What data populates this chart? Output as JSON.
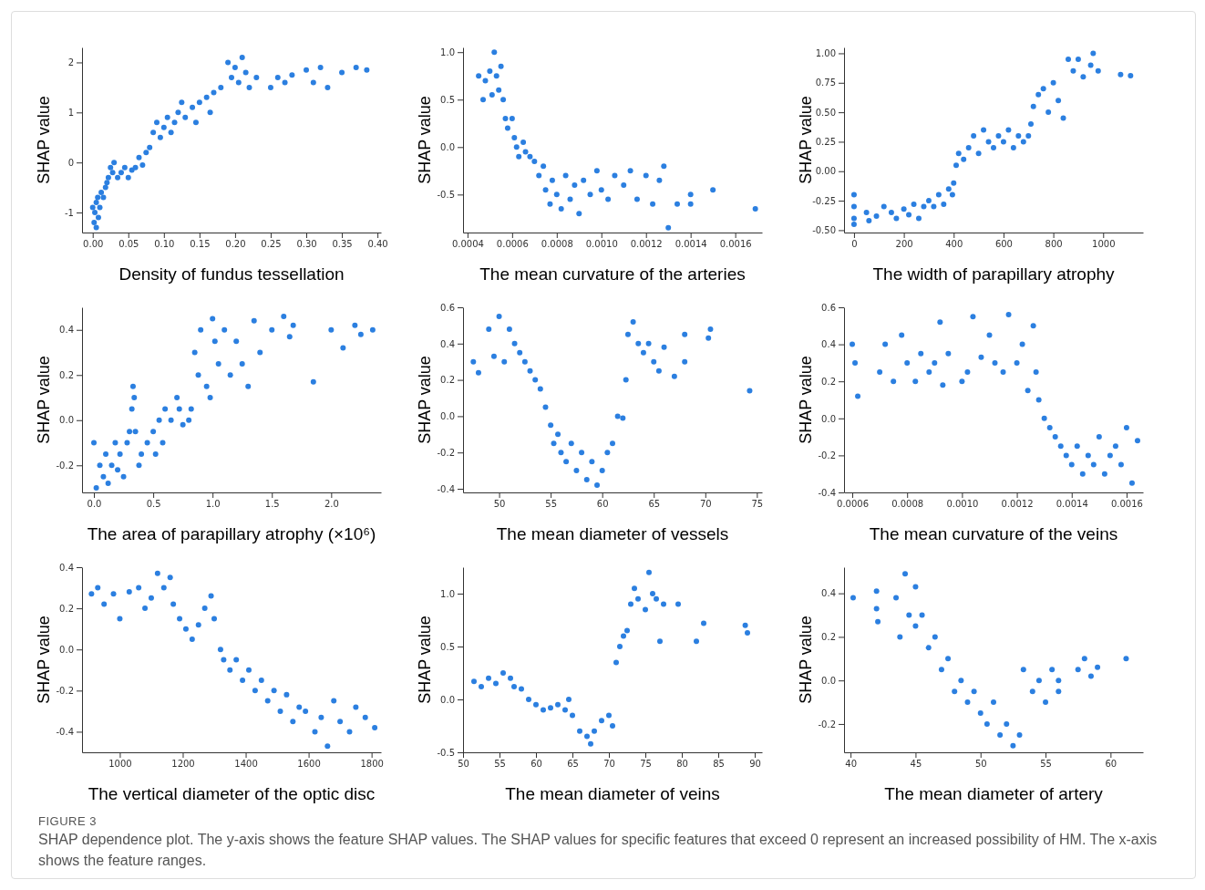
{
  "chart_data": [
    {
      "type": "scatter",
      "xlabel": "Density of fundus tessellation",
      "ylabel": "SHAP value",
      "color": "#2b7fe0",
      "marker": "circle",
      "xlim": [
        -0.015,
        0.405
      ],
      "ylim": [
        -1.4,
        2.3
      ],
      "xticks": [
        {
          "value": 0,
          "label": "0.00"
        },
        0.05,
        {
          "value": 0.1,
          "label": "0.10"
        },
        0.15,
        {
          "value": 0.2,
          "label": "0.20"
        },
        0.25,
        {
          "value": 0.3,
          "label": "0.30"
        },
        0.35,
        {
          "value": 0.4,
          "label": "0.40"
        }
      ],
      "yticks": [
        -1,
        0,
        1,
        2
      ],
      "x": [
        0,
        0.002,
        0.003,
        0.005,
        0.005,
        0.007,
        0.008,
        0.01,
        0.012,
        0.015,
        0.018,
        0.02,
        0.022,
        0.025,
        0.028,
        0.03,
        0.035,
        0.04,
        0.045,
        0.05,
        0.055,
        0.06,
        0.065,
        0.07,
        0.075,
        0.08,
        0.085,
        0.09,
        0.095,
        0.1,
        0.105,
        0.11,
        0.115,
        0.12,
        0.125,
        0.13,
        0.14,
        0.145,
        0.15,
        0.16,
        0.165,
        0.17,
        0.18,
        0.19,
        0.195,
        0.2,
        0.205,
        0.21,
        0.215,
        0.22,
        0.23,
        0.25,
        0.26,
        0.27,
        0.28,
        0.3,
        0.31,
        0.32,
        0.33,
        0.35,
        0.37,
        0.385
      ],
      "values": [
        -0.9,
        -1.2,
        -1,
        -0.8,
        -1.3,
        -0.7,
        -1.1,
        -0.9,
        -0.6,
        -0.7,
        -0.5,
        -0.4,
        -0.3,
        -0.1,
        -0.2,
        0,
        -0.3,
        -0.2,
        -0.1,
        -0.3,
        -0.15,
        -0.1,
        0.1,
        -0.05,
        0.2,
        0.3,
        0.6,
        0.8,
        0.5,
        0.7,
        0.9,
        0.6,
        0.8,
        1,
        1.2,
        0.9,
        1.1,
        0.8,
        1.2,
        1.3,
        1,
        1.4,
        1.5,
        2,
        1.7,
        1.9,
        1.6,
        2.1,
        1.8,
        1.5,
        1.7,
        1.5,
        1.7,
        1.6,
        1.75,
        1.85,
        1.6,
        1.9,
        1.5,
        1.8,
        1.9,
        1.85
      ]
    },
    {
      "type": "scatter",
      "xlabel": "The mean curvature of the arteries",
      "ylabel": "SHAP value",
      "color": "#2b7fe0",
      "marker": "circle",
      "xlim": [
        0.00038,
        0.00172
      ],
      "ylim": [
        -0.9,
        1.05
      ],
      "xticks": [
        0.0004,
        0.0006,
        0.0008,
        {
          "value": 0.001,
          "label": "0.0010"
        },
        0.0012,
        0.0014,
        0.0016
      ],
      "yticks": [
        {
          "value": -0.5,
          "label": "-0.5"
        },
        {
          "value": 0,
          "label": "0.0"
        },
        0.5,
        {
          "value": 1,
          "label": "1.0"
        }
      ],
      "x": [
        0.00045,
        0.00047,
        0.00048,
        0.0005,
        0.00051,
        0.00052,
        0.00053,
        0.00054,
        0.00055,
        0.00056,
        0.00057,
        0.00058,
        0.0006,
        0.00061,
        0.00062,
        0.00063,
        0.00065,
        0.00066,
        0.00068,
        0.0007,
        0.00072,
        0.00074,
        0.00075,
        0.00077,
        0.00078,
        0.0008,
        0.00082,
        0.00084,
        0.00086,
        0.00088,
        0.0009,
        0.00092,
        0.00095,
        0.00098,
        0.001,
        0.00103,
        0.00106,
        0.0011,
        0.00113,
        0.00116,
        0.0012,
        0.00123,
        0.00126,
        0.00128,
        0.0013,
        0.00134,
        0.0014,
        0.0014,
        0.0015,
        0.00169
      ],
      "values": [
        0.75,
        0.5,
        0.7,
        0.8,
        0.55,
        1,
        0.75,
        0.6,
        0.85,
        0.5,
        0.3,
        0.2,
        0.3,
        0.1,
        0,
        -0.1,
        0.05,
        -0.05,
        -0.1,
        -0.15,
        -0.3,
        -0.2,
        -0.45,
        -0.6,
        -0.35,
        -0.5,
        -0.65,
        -0.3,
        -0.55,
        -0.4,
        -0.7,
        -0.35,
        -0.5,
        -0.25,
        -0.45,
        -0.55,
        -0.3,
        -0.4,
        -0.25,
        -0.55,
        -0.3,
        -0.6,
        -0.35,
        -0.2,
        -0.85,
        -0.6,
        -0.5,
        -0.6,
        -0.45,
        -0.65
      ]
    },
    {
      "type": "scatter",
      "xlabel": "The width of parapillary atrophy",
      "ylabel": "SHAP value",
      "color": "#2b7fe0",
      "marker": "circle",
      "xlim": [
        -40,
        1160
      ],
      "ylim": [
        -0.52,
        1.05
      ],
      "xticks": [
        0,
        200,
        400,
        600,
        800,
        1000
      ],
      "yticks": [
        {
          "value": -0.5,
          "label": "-0.50"
        },
        -0.25,
        {
          "value": 0,
          "label": "0.00"
        },
        0.25,
        {
          "value": 0.5,
          "label": "0.50"
        },
        0.75,
        {
          "value": 1,
          "label": "1.00"
        }
      ],
      "x": [
        0,
        0,
        0,
        0,
        50,
        60,
        90,
        120,
        150,
        170,
        200,
        220,
        240,
        260,
        280,
        300,
        320,
        340,
        360,
        380,
        395,
        400,
        410,
        420,
        440,
        460,
        480,
        500,
        520,
        540,
        560,
        580,
        600,
        620,
        640,
        660,
        680,
        700,
        710,
        720,
        740,
        760,
        780,
        800,
        820,
        840,
        860,
        880,
        900,
        920,
        950,
        960,
        980,
        1070,
        1110
      ],
      "values": [
        -0.2,
        -0.3,
        -0.45,
        -0.4,
        -0.35,
        -0.42,
        -0.38,
        -0.3,
        -0.35,
        -0.4,
        -0.32,
        -0.37,
        -0.28,
        -0.4,
        -0.3,
        -0.25,
        -0.3,
        -0.2,
        -0.28,
        -0.15,
        -0.2,
        -0.1,
        0.05,
        0.15,
        0.1,
        0.2,
        0.3,
        0.15,
        0.35,
        0.25,
        0.2,
        0.3,
        0.25,
        0.35,
        0.2,
        0.3,
        0.25,
        0.3,
        0.4,
        0.55,
        0.65,
        0.7,
        0.5,
        0.75,
        0.6,
        0.45,
        0.95,
        0.85,
        0.95,
        0.8,
        0.9,
        1,
        0.85,
        0.82,
        0.81
      ]
    },
    {
      "type": "scatter",
      "xlabel": "The area of parapillary atrophy (×10⁶)",
      "ylabel": "SHAP value",
      "color": "#2b7fe0",
      "marker": "circle",
      "xlim": [
        -0.1,
        2.42
      ],
      "ylim": [
        -0.32,
        0.5
      ],
      "xticks": [
        {
          "value": 0,
          "label": "0.0"
        },
        0.5,
        {
          "value": 1,
          "label": "1.0"
        },
        1.5,
        {
          "value": 2,
          "label": "2.0"
        }
      ],
      "yticks": [
        -0.2,
        {
          "value": 0,
          "label": "0.0"
        },
        0.2,
        0.4
      ],
      "x": [
        0,
        0.02,
        0.05,
        0.08,
        0.1,
        0.12,
        0.15,
        0.18,
        0.2,
        0.22,
        0.25,
        0.28,
        0.3,
        0.32,
        0.33,
        0.34,
        0.35,
        0.38,
        0.4,
        0.45,
        0.5,
        0.52,
        0.55,
        0.58,
        0.6,
        0.65,
        0.7,
        0.72,
        0.75,
        0.8,
        0.82,
        0.85,
        0.88,
        0.9,
        0.95,
        0.98,
        1,
        1.02,
        1.05,
        1.1,
        1.15,
        1.2,
        1.25,
        1.3,
        1.35,
        1.4,
        1.5,
        1.6,
        1.65,
        1.68,
        1.85,
        2,
        2.1,
        2.2,
        2.25,
        2.35
      ],
      "values": [
        -0.1,
        -0.3,
        -0.2,
        -0.25,
        -0.15,
        -0.28,
        -0.2,
        -0.1,
        -0.22,
        -0.15,
        -0.25,
        -0.1,
        -0.05,
        0.05,
        0.15,
        0.1,
        -0.05,
        -0.2,
        -0.15,
        -0.1,
        -0.05,
        -0.15,
        0,
        -0.1,
        0.05,
        0,
        0.1,
        0.05,
        -0.02,
        0,
        0.05,
        0.3,
        0.2,
        0.4,
        0.15,
        0.1,
        0.45,
        0.35,
        0.25,
        0.4,
        0.2,
        0.35,
        0.25,
        0.15,
        0.44,
        0.3,
        0.4,
        0.46,
        0.37,
        0.42,
        0.17,
        0.4,
        0.32,
        0.42,
        0.38,
        0.4
      ]
    },
    {
      "type": "scatter",
      "xlabel": "The mean diameter of vessels",
      "ylabel": "SHAP value",
      "color": "#2b7fe0",
      "marker": "circle",
      "xlim": [
        46.5,
        75.5
      ],
      "ylim": [
        -0.42,
        0.6
      ],
      "xticks": [
        50,
        55,
        60,
        65,
        70,
        75
      ],
      "yticks": [
        -0.4,
        -0.2,
        {
          "value": 0,
          "label": "0.0"
        },
        0.2,
        0.4,
        0.6
      ],
      "x": [
        47.5,
        48,
        49,
        49.5,
        50,
        50.5,
        51,
        51.5,
        52,
        52.5,
        53,
        53.5,
        54,
        54.5,
        55,
        55.3,
        55.7,
        56,
        56.5,
        57,
        57.5,
        58,
        58.5,
        59,
        59.5,
        60,
        60.5,
        61,
        61.5,
        62,
        62.3,
        62.5,
        63,
        63.5,
        64,
        64.5,
        65,
        65.5,
        66,
        67,
        68,
        68,
        70.5,
        70.3,
        74.3
      ],
      "values": [
        0.3,
        0.24,
        0.48,
        0.33,
        0.55,
        0.3,
        0.48,
        0.4,
        0.35,
        0.3,
        0.25,
        0.2,
        0.15,
        0.05,
        -0.05,
        -0.15,
        -0.1,
        -0.2,
        -0.25,
        -0.15,
        -0.3,
        -0.2,
        -0.35,
        -0.25,
        -0.38,
        -0.3,
        -0.2,
        -0.15,
        0,
        -0.01,
        0.2,
        0.45,
        0.52,
        0.4,
        0.35,
        0.4,
        0.3,
        0.25,
        0.38,
        0.22,
        0.45,
        0.3,
        0.48,
        0.43,
        0.14
      ]
    },
    {
      "type": "scatter",
      "xlabel": "The mean curvature of the veins",
      "ylabel": "SHAP value",
      "color": "#2b7fe0",
      "marker": "circle",
      "xlim": [
        0.00057,
        0.00166
      ],
      "ylim": [
        -0.4,
        0.6
      ],
      "xticks": [
        0.0006,
        0.0008,
        {
          "value": 0.001,
          "label": "0.0010"
        },
        0.0012,
        0.0014,
        0.0016
      ],
      "yticks": [
        -0.4,
        -0.2,
        {
          "value": 0,
          "label": "0.0"
        },
        0.2,
        0.4,
        0.6
      ],
      "x": [
        0.0006,
        0.00061,
        0.00062,
        0.0007,
        0.00072,
        0.00075,
        0.00078,
        0.0008,
        0.00083,
        0.00085,
        0.00088,
        0.0009,
        0.00092,
        0.00093,
        0.00095,
        0.001,
        0.00102,
        0.00104,
        0.00107,
        0.0011,
        0.00112,
        0.00115,
        0.00117,
        0.0012,
        0.00122,
        0.00124,
        0.00126,
        0.00127,
        0.00128,
        0.0013,
        0.00132,
        0.00134,
        0.00136,
        0.00138,
        0.0014,
        0.00142,
        0.00144,
        0.00146,
        0.00148,
        0.0015,
        0.00152,
        0.00154,
        0.00156,
        0.00158,
        0.0016,
        0.00162,
        0.00164
      ],
      "values": [
        0.4,
        0.3,
        0.12,
        0.25,
        0.4,
        0.2,
        0.45,
        0.3,
        0.2,
        0.35,
        0.25,
        0.3,
        0.52,
        0.18,
        0.35,
        0.2,
        0.25,
        0.55,
        0.33,
        0.45,
        0.3,
        0.25,
        0.56,
        0.3,
        0.4,
        0.15,
        0.5,
        0.25,
        0.1,
        0,
        -0.05,
        -0.1,
        -0.15,
        -0.2,
        -0.25,
        -0.15,
        -0.3,
        -0.2,
        -0.25,
        -0.1,
        -0.3,
        -0.2,
        -0.15,
        -0.25,
        -0.05,
        -0.35,
        -0.12
      ]
    },
    {
      "type": "scatter",
      "xlabel": "The vertical diameter of the optic disc",
      "ylabel": "SHAP value",
      "color": "#2b7fe0",
      "marker": "circle",
      "xlim": [
        880,
        1830
      ],
      "ylim": [
        -0.5,
        0.4
      ],
      "xticks": [
        1000,
        1200,
        1400,
        1600,
        1800
      ],
      "yticks": [
        -0.4,
        -0.2,
        {
          "value": 0,
          "label": "0.0"
        },
        0.2,
        0.4
      ],
      "x": [
        910,
        930,
        950,
        980,
        1000,
        1030,
        1060,
        1080,
        1100,
        1120,
        1140,
        1160,
        1170,
        1190,
        1210,
        1230,
        1250,
        1270,
        1290,
        1300,
        1320,
        1330,
        1350,
        1370,
        1390,
        1410,
        1430,
        1450,
        1470,
        1490,
        1510,
        1530,
        1550,
        1570,
        1590,
        1620,
        1640,
        1660,
        1680,
        1700,
        1730,
        1750,
        1780,
        1810
      ],
      "values": [
        0.27,
        0.3,
        0.22,
        0.27,
        0.15,
        0.28,
        0.3,
        0.2,
        0.25,
        0.37,
        0.3,
        0.35,
        0.22,
        0.15,
        0.1,
        0.05,
        0.12,
        0.2,
        0.26,
        0.15,
        0,
        -0.05,
        -0.1,
        -0.05,
        -0.15,
        -0.1,
        -0.2,
        -0.15,
        -0.25,
        -0.2,
        -0.3,
        -0.22,
        -0.35,
        -0.28,
        -0.3,
        -0.4,
        -0.33,
        -0.47,
        -0.25,
        -0.35,
        -0.4,
        -0.28,
        -0.33,
        -0.38
      ]
    },
    {
      "type": "scatter",
      "xlabel": "The mean diameter of veins",
      "ylabel": "SHAP value",
      "color": "#2b7fe0",
      "marker": "circle",
      "xlim": [
        50,
        91
      ],
      "ylim": [
        -0.5,
        1.25
      ],
      "xticks": [
        50,
        55,
        60,
        65,
        70,
        75,
        80,
        85,
        90
      ],
      "yticks": [
        -0.5,
        {
          "value": 0,
          "label": "0.0"
        },
        0.5,
        {
          "value": 1,
          "label": "1.0"
        }
      ],
      "x": [
        51.5,
        52.5,
        53.5,
        54.5,
        55.5,
        56.5,
        57,
        58,
        59,
        60,
        61,
        62,
        63,
        64,
        64.5,
        65,
        66,
        67,
        67.5,
        68,
        69,
        70,
        70.5,
        71,
        71.5,
        72,
        72.5,
        73,
        73.5,
        74,
        75,
        75.5,
        76,
        76.5,
        77,
        77.5,
        79.5,
        82,
        83,
        88.7,
        89
      ],
      "values": [
        0.17,
        0.12,
        0.2,
        0.15,
        0.25,
        0.2,
        0.12,
        0.1,
        0,
        -0.05,
        -0.1,
        -0.08,
        -0.05,
        -0.1,
        0,
        -0.15,
        -0.3,
        -0.35,
        -0.42,
        -0.3,
        -0.2,
        -0.15,
        -0.25,
        0.35,
        0.5,
        0.6,
        0.65,
        0.9,
        1.05,
        0.95,
        0.85,
        1.2,
        1,
        0.95,
        0.55,
        0.9,
        0.9,
        0.55,
        0.72,
        0.7,
        0.63
      ]
    },
    {
      "type": "scatter",
      "xlabel": "The mean diameter of artery",
      "ylabel": "SHAP value",
      "color": "#2b7fe0",
      "marker": "circle",
      "xlim": [
        39.5,
        62.5
      ],
      "ylim": [
        -0.33,
        0.52
      ],
      "xticks": [
        40,
        45,
        50,
        55,
        60
      ],
      "yticks": [
        -0.2,
        {
          "value": 0,
          "label": "0.0"
        },
        0.2,
        0.4
      ],
      "x": [
        40.2,
        42,
        42,
        42.1,
        43.5,
        43.8,
        44.2,
        44.5,
        45,
        45,
        45.5,
        46,
        46.5,
        47,
        47.5,
        48,
        48.5,
        49,
        49.5,
        50,
        50.5,
        51,
        51.5,
        52,
        52.5,
        53,
        53.3,
        54,
        54.5,
        55,
        55.5,
        56,
        56,
        57.5,
        58,
        58.5,
        59,
        61.2
      ],
      "values": [
        0.38,
        0.33,
        0.41,
        0.27,
        0.38,
        0.2,
        0.49,
        0.3,
        0.43,
        0.25,
        0.3,
        0.15,
        0.2,
        0.05,
        0.1,
        -0.05,
        0,
        -0.1,
        -0.05,
        -0.15,
        -0.2,
        -0.1,
        -0.25,
        -0.2,
        -0.3,
        -0.25,
        0.05,
        -0.05,
        0,
        -0.1,
        0.05,
        0,
        -0.05,
        0.05,
        0.1,
        0.02,
        0.06,
        0.1
      ],
      "annotations": [
        "FIGURE 3",
        "SHAP dependence plot. The y-axis shows the feature SHAP values. The SHAP values for specific features that exceed 0 represent an increased possibility of HM. The x-axis shows the feature ranges."
      ]
    }
  ]
}
